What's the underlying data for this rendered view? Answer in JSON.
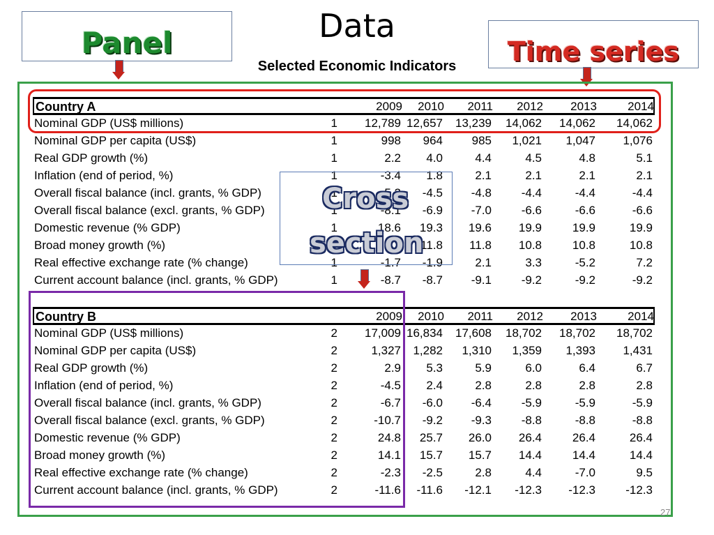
{
  "slide": {
    "title": "Data",
    "subtitle": "Selected Economic Indicators",
    "page_number": "27"
  },
  "callouts": {
    "panel": "Panel",
    "time_series": "Time series",
    "cross_line1": "Cross",
    "cross_line2": "section"
  },
  "colors": {
    "green_frame": "#3aa04a",
    "red_frame": "#e0201a",
    "purple_frame": "#7a2aa8",
    "blue_frame": "#5a7bb5"
  },
  "years": [
    "2009",
    "2010",
    "2011",
    "2012",
    "2013",
    "2014"
  ],
  "countries": [
    {
      "name": "Country A",
      "rows": [
        {
          "label": "Nominal GDP (US$ millions)",
          "id": "1",
          "values": [
            "12,789",
            "12,657",
            "13,239",
            "14,062",
            "14,062",
            "14,062"
          ]
        },
        {
          "label": "Nominal GDP per capita (US$)",
          "id": "1",
          "values": [
            "998",
            "964",
            "985",
            "1,021",
            "1,047",
            "1,076"
          ]
        },
        {
          "label": "Real GDP growth (%)",
          "id": "1",
          "values": [
            "2.2",
            "4.0",
            "4.4",
            "4.5",
            "4.8",
            "5.1"
          ]
        },
        {
          "label": "Inflation (end of period, %)",
          "id": "1",
          "values": [
            "-3.4",
            "1.8",
            "2.1",
            "2.1",
            "2.1",
            "2.1"
          ]
        },
        {
          "label": "Overall fiscal balance (incl. grants,  % GDP)",
          "id": "1",
          "values": [
            "-5.2",
            "-4.5",
            "-4.8",
            "-4.4",
            "-4.4",
            "-4.4"
          ]
        },
        {
          "label": "Overall fiscal balance (excl. grants, % GDP)",
          "id": "1",
          "values": [
            "-8.1",
            "-6.9",
            "-7.0",
            "-6.6",
            "-6.6",
            "-6.6"
          ]
        },
        {
          "label": "Domestic revenue (% GDP)",
          "id": "1",
          "values": [
            "18.6",
            "19.3",
            "19.6",
            "19.9",
            "19.9",
            "19.9"
          ]
        },
        {
          "label": "Broad money growth (%)",
          "id": "1",
          "values": [
            "",
            "11.8",
            "11.8",
            "10.8",
            "10.8",
            "10.8"
          ]
        },
        {
          "label": "Real effective exchange rate (% change)",
          "id": "1",
          "values": [
            "-1.7",
            "-1.9",
            "2.1",
            "3.3",
            "-5.2",
            "7.2"
          ]
        },
        {
          "label": "Current account balance (incl. grants, % GDP)",
          "id": "1",
          "values": [
            "-8.7",
            "-8.7",
            "-9.1",
            "-9.2",
            "-9.2",
            "-9.2"
          ]
        }
      ]
    },
    {
      "name": "Country B",
      "rows": [
        {
          "label": "Nominal GDP (US$ millions)",
          "id": "2",
          "values": [
            "17,009",
            "16,834",
            "17,608",
            "18,702",
            "18,702",
            "18,702"
          ]
        },
        {
          "label": "Nominal GDP per capita (US$)",
          "id": "2",
          "values": [
            "1,327",
            "1,282",
            "1,310",
            "1,359",
            "1,393",
            "1,431"
          ]
        },
        {
          "label": "Real GDP growth (%)",
          "id": "2",
          "values": [
            "2.9",
            "5.3",
            "5.9",
            "6.0",
            "6.4",
            "6.7"
          ]
        },
        {
          "label": "Inflation (end of period, %)",
          "id": "2",
          "values": [
            "-4.5",
            "2.4",
            "2.8",
            "2.8",
            "2.8",
            "2.8"
          ]
        },
        {
          "label": "Overall fiscal balance (incl. grants,  % GDP)",
          "id": "2",
          "values": [
            "-6.7",
            "-6.0",
            "-6.4",
            "-5.9",
            "-5.9",
            "-5.9"
          ]
        },
        {
          "label": "Overall fiscal balance (excl. grants, % GDP)",
          "id": "2",
          "values": [
            "-10.7",
            "-9.2",
            "-9.3",
            "-8.8",
            "-8.8",
            "-8.8"
          ]
        },
        {
          "label": "Domestic revenue (% GDP)",
          "id": "2",
          "values": [
            "24.8",
            "25.7",
            "26.0",
            "26.4",
            "26.4",
            "26.4"
          ]
        },
        {
          "label": "Broad money growth (%)",
          "id": "2",
          "values": [
            "14.1",
            "15.7",
            "15.7",
            "14.4",
            "14.4",
            "14.4"
          ]
        },
        {
          "label": "Real effective exchange rate (% change)",
          "id": "2",
          "values": [
            "-2.3",
            "-2.5",
            "2.8",
            "4.4",
            "-7.0",
            "9.5"
          ]
        },
        {
          "label": "Current account balance (incl. grants, % GDP)",
          "id": "2",
          "values": [
            "-11.6",
            "-11.6",
            "-12.1",
            "-12.3",
            "-12.3",
            "-12.3"
          ]
        }
      ]
    }
  ]
}
